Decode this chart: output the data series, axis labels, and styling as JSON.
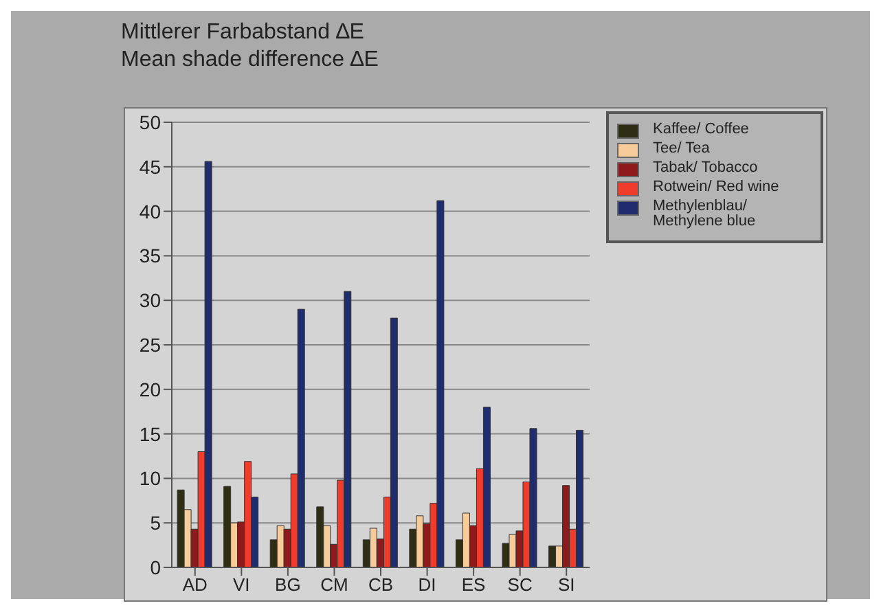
{
  "chart_data": {
    "type": "bar",
    "title": "Mittlerer Farbabstand ∆E",
    "subtitle": "Mean shade difference ∆E",
    "categories": [
      "AD",
      "VI",
      "BG",
      "CM",
      "CB",
      "DI",
      "ES",
      "SC",
      "SI"
    ],
    "series": [
      {
        "name": "Kaffee/ Coffee",
        "color": "#2e2e14",
        "values": [
          8.7,
          9.1,
          3.1,
          6.8,
          3.1,
          4.3,
          3.1,
          2.7,
          2.4
        ]
      },
      {
        "name": "Tee/ Tea",
        "color": "#f8cc9a",
        "values": [
          6.5,
          5,
          4.7,
          4.7,
          4.4,
          5.8,
          6.1,
          3.7,
          2.4
        ]
      },
      {
        "name": "Tabak/ Tobacco",
        "color": "#8e1a1c",
        "values": [
          4.3,
          5.1,
          4.3,
          2.6,
          3.2,
          4.9,
          4.7,
          4.1,
          9.2
        ]
      },
      {
        "name": "Rotwein/ Red wine",
        "color": "#f03c2c",
        "values": [
          13,
          11.9,
          10.5,
          9.8,
          7.9,
          7.2,
          11.1,
          9.6,
          4.3
        ]
      },
      {
        "name": "Methylenblau/ Methylene blue",
        "color": "#1f2d6e",
        "values": [
          45.6,
          7.9,
          29,
          31,
          28,
          41.2,
          18,
          15.6,
          15.4
        ]
      }
    ],
    "ylim": [
      0,
      50
    ],
    "yticks": [
      0,
      5,
      10,
      15,
      20,
      25,
      30,
      35,
      40,
      45,
      50
    ],
    "grid": "y",
    "legend": "top right"
  }
}
